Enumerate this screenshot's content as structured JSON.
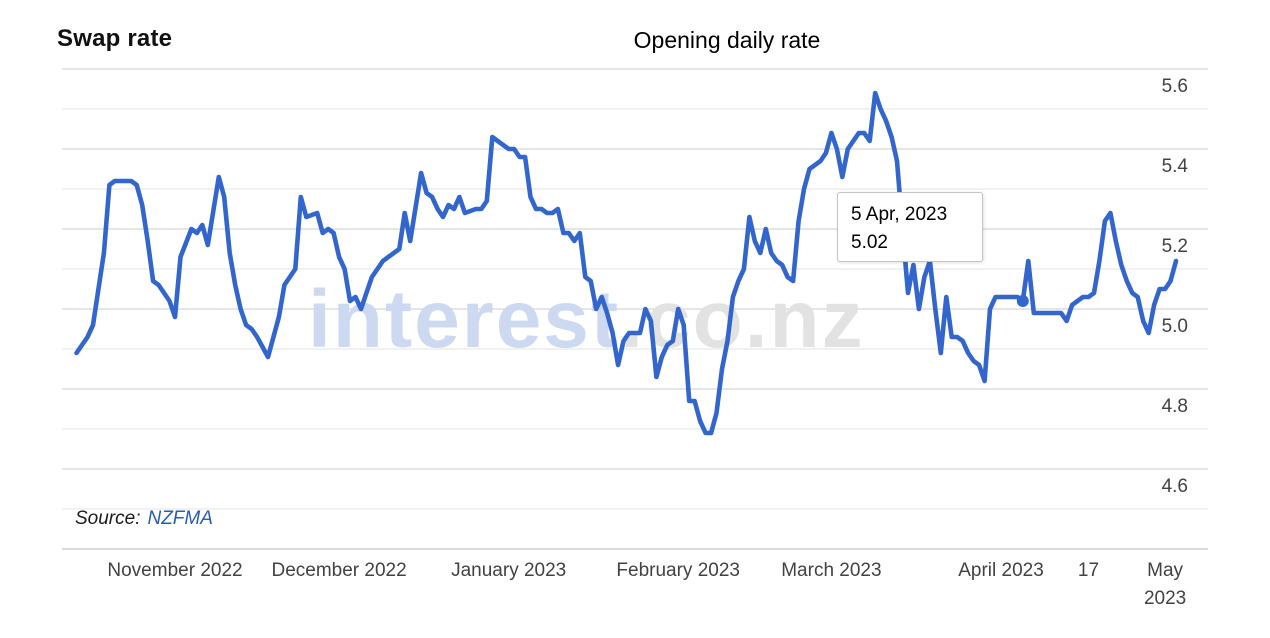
{
  "header": {
    "title": "Swap rate",
    "subtitle": "Opening daily rate"
  },
  "tooltip": {
    "date": "5 Apr, 2023",
    "value": "5.02"
  },
  "source": {
    "label": "Source:",
    "link": "NZFMA"
  },
  "watermark": {
    "brand": "interest",
    "suffix": ".co.nz"
  },
  "colors": {
    "line": "#3366cc",
    "selected_dot": "#3366cc",
    "grid_major": "#cbcbcb",
    "grid_minor": "#e3e3e3",
    "axis_line": "#b5b5b5",
    "axis_text": "#424242",
    "watermark_brand": "#ccd9f1",
    "watermark_suffix": "#e2e2e2"
  },
  "chart_data": {
    "type": "line",
    "title": "Swap rate",
    "subtitle": "Opening daily rate",
    "xlabel": "",
    "ylabel": "",
    "ylim": [
      4.4,
      5.62
    ],
    "grid": true,
    "legend": false,
    "y_ticks": [
      {
        "value": 5.6,
        "label": "5.6"
      },
      {
        "value": 5.4,
        "label": "5.4"
      },
      {
        "value": 5.2,
        "label": "5.2"
      },
      {
        "value": 5.0,
        "label": "5.0"
      },
      {
        "value": 4.8,
        "label": "4.8"
      },
      {
        "value": 4.6,
        "label": "4.6"
      }
    ],
    "y_ticks_minor": [
      5.5,
      5.3,
      5.1,
      4.9,
      4.7,
      4.5
    ],
    "x_ticks": [
      {
        "date": "2022-11-01",
        "lines": [
          "November 2022"
        ]
      },
      {
        "date": "2022-12-01",
        "lines": [
          "December 2022"
        ]
      },
      {
        "date": "2023-01-01",
        "lines": [
          "January 2023"
        ]
      },
      {
        "date": "2023-02-01",
        "lines": [
          "February 2023"
        ]
      },
      {
        "date": "2023-03-01",
        "lines": [
          "March 2023"
        ]
      },
      {
        "date": "2023-04-01",
        "lines": [
          "April 2023"
        ]
      },
      {
        "date": "2023-04-17",
        "lines": [
          "17"
        ]
      },
      {
        "date": "2023-05-01",
        "lines": [
          "May",
          "2023"
        ]
      }
    ],
    "selected_point": {
      "date": "2023-04-05",
      "value": 5.02,
      "tooltip_date": "5 Apr, 2023",
      "tooltip_value": "5.02"
    },
    "series": [
      {
        "name": "Swap rate",
        "color": "#3366cc",
        "points": [
          [
            "2022-10-14",
            4.89
          ],
          [
            "2022-10-16",
            4.93
          ],
          [
            "2022-10-17",
            4.96
          ],
          [
            "2022-10-19",
            5.14
          ],
          [
            "2022-10-20",
            5.31
          ],
          [
            "2022-10-21",
            5.32
          ],
          [
            "2022-10-24",
            5.32
          ],
          [
            "2022-10-25",
            5.31
          ],
          [
            "2022-10-26",
            5.26
          ],
          [
            "2022-10-27",
            5.17
          ],
          [
            "2022-10-28",
            5.07
          ],
          [
            "2022-10-29",
            5.06
          ],
          [
            "2022-10-31",
            5.02
          ],
          [
            "2022-11-01",
            4.98
          ],
          [
            "2022-11-02",
            5.13
          ],
          [
            "2022-11-04",
            5.2
          ],
          [
            "2022-11-05",
            5.19
          ],
          [
            "2022-11-06",
            5.21
          ],
          [
            "2022-11-07",
            5.16
          ],
          [
            "2022-11-09",
            5.33
          ],
          [
            "2022-11-10",
            5.28
          ],
          [
            "2022-11-11",
            5.14
          ],
          [
            "2022-11-12",
            5.06
          ],
          [
            "2022-11-13",
            5.0
          ],
          [
            "2022-11-14",
            4.96
          ],
          [
            "2022-11-15",
            4.95
          ],
          [
            "2022-11-16",
            4.93
          ],
          [
            "2022-11-18",
            4.88
          ],
          [
            "2022-11-20",
            4.98
          ],
          [
            "2022-11-21",
            5.06
          ],
          [
            "2022-11-23",
            5.1
          ],
          [
            "2022-11-24",
            5.28
          ],
          [
            "2022-11-25",
            5.23
          ],
          [
            "2022-11-27",
            5.24
          ],
          [
            "2022-11-28",
            5.19
          ],
          [
            "2022-11-29",
            5.2
          ],
          [
            "2022-11-30",
            5.19
          ],
          [
            "2022-12-01",
            5.13
          ],
          [
            "2022-12-02",
            5.1
          ],
          [
            "2022-12-03",
            5.02
          ],
          [
            "2022-12-04",
            5.03
          ],
          [
            "2022-12-05",
            5.0
          ],
          [
            "2022-12-06",
            5.04
          ],
          [
            "2022-12-07",
            5.08
          ],
          [
            "2022-12-09",
            5.12
          ],
          [
            "2022-12-10",
            5.13
          ],
          [
            "2022-12-12",
            5.15
          ],
          [
            "2022-12-13",
            5.24
          ],
          [
            "2022-12-14",
            5.17
          ],
          [
            "2022-12-16",
            5.34
          ],
          [
            "2022-12-17",
            5.29
          ],
          [
            "2022-12-18",
            5.28
          ],
          [
            "2022-12-19",
            5.25
          ],
          [
            "2022-12-20",
            5.23
          ],
          [
            "2022-12-21",
            5.26
          ],
          [
            "2022-12-22",
            5.25
          ],
          [
            "2022-12-23",
            5.28
          ],
          [
            "2022-12-24",
            5.24
          ],
          [
            "2022-12-26",
            5.25
          ],
          [
            "2022-12-27",
            5.25
          ],
          [
            "2022-12-28",
            5.27
          ],
          [
            "2022-12-29",
            5.43
          ],
          [
            "2022-12-30",
            5.42
          ],
          [
            "2022-12-31",
            5.41
          ],
          [
            "2023-01-01",
            5.4
          ],
          [
            "2023-01-02",
            5.4
          ],
          [
            "2023-01-03",
            5.38
          ],
          [
            "2023-01-04",
            5.38
          ],
          [
            "2023-01-05",
            5.28
          ],
          [
            "2023-01-06",
            5.25
          ],
          [
            "2023-01-07",
            5.25
          ],
          [
            "2023-01-08",
            5.24
          ],
          [
            "2023-01-09",
            5.24
          ],
          [
            "2023-01-10",
            5.25
          ],
          [
            "2023-01-11",
            5.19
          ],
          [
            "2023-01-12",
            5.19
          ],
          [
            "2023-01-13",
            5.17
          ],
          [
            "2023-01-14",
            5.19
          ],
          [
            "2023-01-15",
            5.08
          ],
          [
            "2023-01-16",
            5.07
          ],
          [
            "2023-01-17",
            5.0
          ],
          [
            "2023-01-18",
            5.03
          ],
          [
            "2023-01-19",
            4.99
          ],
          [
            "2023-01-20",
            4.94
          ],
          [
            "2023-01-21",
            4.86
          ],
          [
            "2023-01-22",
            4.92
          ],
          [
            "2023-01-23",
            4.94
          ],
          [
            "2023-01-24",
            4.94
          ],
          [
            "2023-01-25",
            4.94
          ],
          [
            "2023-01-26",
            5.0
          ],
          [
            "2023-01-27",
            4.97
          ],
          [
            "2023-01-28",
            4.83
          ],
          [
            "2023-01-29",
            4.88
          ],
          [
            "2023-01-30",
            4.91
          ],
          [
            "2023-01-31",
            4.92
          ],
          [
            "2023-02-01",
            5.0
          ],
          [
            "2023-02-02",
            4.96
          ],
          [
            "2023-02-03",
            4.77
          ],
          [
            "2023-02-04",
            4.77
          ],
          [
            "2023-02-05",
            4.72
          ],
          [
            "2023-02-06",
            4.69
          ],
          [
            "2023-02-07",
            4.69
          ],
          [
            "2023-02-08",
            4.74
          ],
          [
            "2023-02-09",
            4.85
          ],
          [
            "2023-02-10",
            4.92
          ],
          [
            "2023-02-11",
            5.03
          ],
          [
            "2023-02-12",
            5.07
          ],
          [
            "2023-02-13",
            5.1
          ],
          [
            "2023-02-14",
            5.23
          ],
          [
            "2023-02-15",
            5.17
          ],
          [
            "2023-02-16",
            5.14
          ],
          [
            "2023-02-17",
            5.2
          ],
          [
            "2023-02-18",
            5.14
          ],
          [
            "2023-02-19",
            5.12
          ],
          [
            "2023-02-20",
            5.11
          ],
          [
            "2023-02-21",
            5.08
          ],
          [
            "2023-02-22",
            5.07
          ],
          [
            "2023-02-23",
            5.22
          ],
          [
            "2023-02-24",
            5.3
          ],
          [
            "2023-02-25",
            5.35
          ],
          [
            "2023-02-26",
            5.36
          ],
          [
            "2023-02-27",
            5.37
          ],
          [
            "2023-02-28",
            5.39
          ],
          [
            "2023-03-01",
            5.44
          ],
          [
            "2023-03-02",
            5.4
          ],
          [
            "2023-03-03",
            5.33
          ],
          [
            "2023-03-04",
            5.4
          ],
          [
            "2023-03-05",
            5.42
          ],
          [
            "2023-03-06",
            5.44
          ],
          [
            "2023-03-07",
            5.44
          ],
          [
            "2023-03-08",
            5.42
          ],
          [
            "2023-03-09",
            5.54
          ],
          [
            "2023-03-10",
            5.5
          ],
          [
            "2023-03-11",
            5.47
          ],
          [
            "2023-03-12",
            5.43
          ],
          [
            "2023-03-13",
            5.37
          ],
          [
            "2023-03-14",
            5.2
          ],
          [
            "2023-03-15",
            5.04
          ],
          [
            "2023-03-16",
            5.11
          ],
          [
            "2023-03-17",
            5.0
          ],
          [
            "2023-03-18",
            5.08
          ],
          [
            "2023-03-19",
            5.12
          ],
          [
            "2023-03-20",
            5.0
          ],
          [
            "2023-03-21",
            4.89
          ],
          [
            "2023-03-22",
            5.03
          ],
          [
            "2023-03-23",
            4.93
          ],
          [
            "2023-03-24",
            4.93
          ],
          [
            "2023-03-25",
            4.92
          ],
          [
            "2023-03-26",
            4.89
          ],
          [
            "2023-03-27",
            4.87
          ],
          [
            "2023-03-28",
            4.86
          ],
          [
            "2023-03-29",
            4.82
          ],
          [
            "2023-03-30",
            5.0
          ],
          [
            "2023-03-31",
            5.03
          ],
          [
            "2023-04-01",
            5.03
          ],
          [
            "2023-04-03",
            5.03
          ],
          [
            "2023-04-04",
            5.03
          ],
          [
            "2023-04-05",
            5.02
          ],
          [
            "2023-04-06",
            5.12
          ],
          [
            "2023-04-07",
            4.99
          ],
          [
            "2023-04-08",
            4.99
          ],
          [
            "2023-04-10",
            4.99
          ],
          [
            "2023-04-11",
            4.99
          ],
          [
            "2023-04-12",
            4.99
          ],
          [
            "2023-04-13",
            4.97
          ],
          [
            "2023-04-14",
            5.01
          ],
          [
            "2023-04-15",
            5.02
          ],
          [
            "2023-04-16",
            5.03
          ],
          [
            "2023-04-17",
            5.03
          ],
          [
            "2023-04-18",
            5.04
          ],
          [
            "2023-04-19",
            5.12
          ],
          [
            "2023-04-20",
            5.22
          ],
          [
            "2023-04-21",
            5.24
          ],
          [
            "2023-04-22",
            5.17
          ],
          [
            "2023-04-23",
            5.11
          ],
          [
            "2023-04-24",
            5.07
          ],
          [
            "2023-04-25",
            5.04
          ],
          [
            "2023-04-26",
            5.03
          ],
          [
            "2023-04-27",
            4.97
          ],
          [
            "2023-04-28",
            4.94
          ],
          [
            "2023-04-29",
            5.01
          ],
          [
            "2023-04-30",
            5.05
          ],
          [
            "2023-05-01",
            5.05
          ],
          [
            "2023-05-02",
            5.07
          ],
          [
            "2023-05-03",
            5.12
          ]
        ]
      }
    ]
  }
}
